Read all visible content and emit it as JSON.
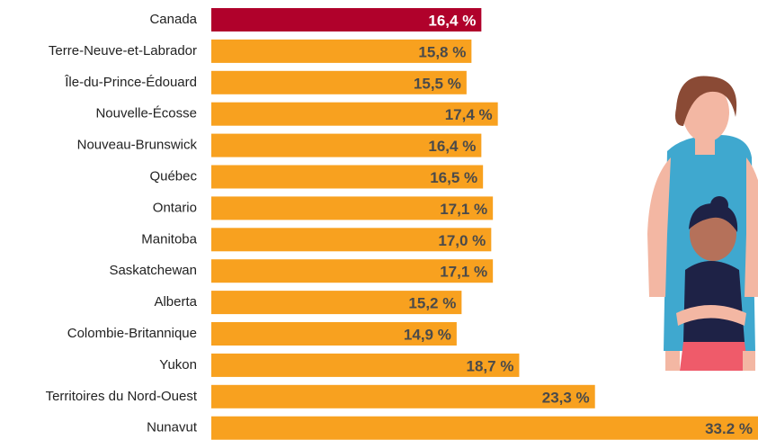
{
  "chart_data": {
    "type": "bar",
    "orientation": "horizontal",
    "categories": [
      "Canada",
      "Terre-Neuve-et-Labrador",
      "Île-du-Prince-Édouard",
      "Nouvelle-Écosse",
      "Nouveau-Brunswick",
      "Québec",
      "Ontario",
      "Manitoba",
      "Saskatchewan",
      "Alberta",
      "Colombie-Britannique",
      "Yukon",
      "Territoires du Nord-Ouest",
      "Nunavut"
    ],
    "values": [
      16.4,
      15.8,
      15.5,
      17.4,
      16.4,
      16.5,
      17.1,
      17.0,
      17.1,
      15.2,
      14.9,
      18.7,
      23.3,
      33.2
    ],
    "value_labels": [
      "16,4 %",
      "15,8 %",
      "15,5 %",
      "17,4 %",
      "16,4 %",
      "16,5 %",
      "17,1 %",
      "17,0 %",
      "17,1 %",
      "15,2 %",
      "14,9 %",
      "18,7 %",
      "23,3 %",
      "33.2 %"
    ],
    "colors": [
      "#b0012b",
      "#f8a11f",
      "#f8a11f",
      "#f8a11f",
      "#f8a11f",
      "#f8a11f",
      "#f8a11f",
      "#f8a11f",
      "#f8a11f",
      "#f8a11f",
      "#f8a11f",
      "#f8a11f",
      "#f8a11f",
      "#f8a11f"
    ],
    "label_colors": [
      "#ffffff",
      "#4a4a4a",
      "#4a4a4a",
      "#4a4a4a",
      "#4a4a4a",
      "#4a4a4a",
      "#4a4a4a",
      "#4a4a4a",
      "#4a4a4a",
      "#4a4a4a",
      "#4a4a4a",
      "#4a4a4a",
      "#4a4a4a",
      "#4a4a4a"
    ]
  }
}
